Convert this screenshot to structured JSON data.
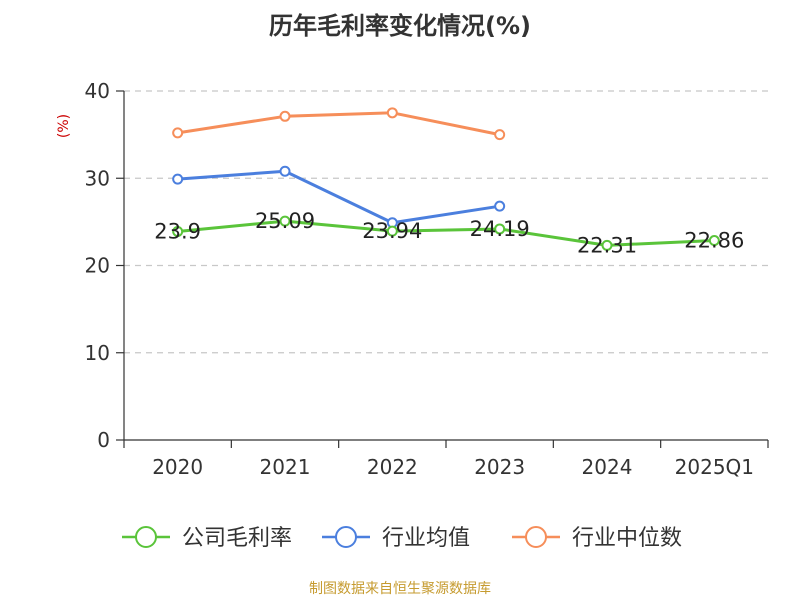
{
  "title": "历年毛利率变化情况(%)",
  "source": "制图数据来自恒生聚源数据库",
  "chart_data": {
    "type": "line",
    "title": "历年毛利率变化情况(%)",
    "ylabel": "(%)",
    "xlabel": "",
    "categories": [
      "2020",
      "2021",
      "2022",
      "2023",
      "2024",
      "2025Q1"
    ],
    "ylim": [
      0,
      40
    ],
    "yticks": [
      0,
      10,
      20,
      30,
      40
    ],
    "grid": true,
    "legend_position": "bottom",
    "series": [
      {
        "name": "公司毛利率",
        "color": "#5ac43a",
        "values": [
          23.9,
          25.09,
          23.94,
          24.19,
          22.31,
          22.86
        ],
        "labels": [
          "23.9",
          "25.09",
          "23.94",
          "24.19",
          "22.31",
          "22.86"
        ]
      },
      {
        "name": "行业均值",
        "color": "#4b7fde",
        "values": [
          29.9,
          30.8,
          24.9,
          26.8,
          null,
          null
        ],
        "labels": null
      },
      {
        "name": "行业中位数",
        "color": "#f68e5a",
        "values": [
          35.2,
          37.1,
          37.5,
          35.0,
          null,
          null
        ],
        "labels": null
      }
    ]
  }
}
